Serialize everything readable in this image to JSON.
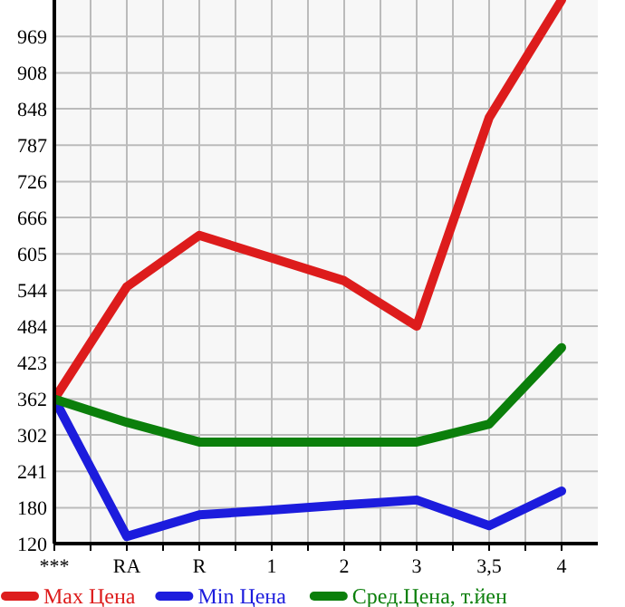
{
  "chart_data": {
    "type": "line",
    "categories": [
      "***",
      "RA",
      "R",
      "1",
      "2",
      "3",
      "3,5",
      "4"
    ],
    "series": [
      {
        "name": "Max Цена",
        "color": "#dd1c1c",
        "values": [
          362,
          550,
          636,
          598,
          560,
          484,
          833,
          1030
        ]
      },
      {
        "name": "Min Цена",
        "color": "#1c1cdd",
        "values": [
          362,
          132,
          168,
          176,
          185,
          193,
          150,
          208
        ]
      },
      {
        "name": "Сред.Цена, т.йен",
        "color": "#0b7f0b",
        "values": [
          362,
          323,
          290,
          290,
          290,
          290,
          320,
          448
        ]
      }
    ],
    "ylim": [
      120,
      1030
    ],
    "yticks": [
      120,
      180,
      241,
      302,
      362,
      423,
      484,
      544,
      605,
      666,
      726,
      787,
      848,
      908,
      969
    ],
    "grid": true,
    "legend": "bottom",
    "marker": "none",
    "line_style": "solid"
  }
}
